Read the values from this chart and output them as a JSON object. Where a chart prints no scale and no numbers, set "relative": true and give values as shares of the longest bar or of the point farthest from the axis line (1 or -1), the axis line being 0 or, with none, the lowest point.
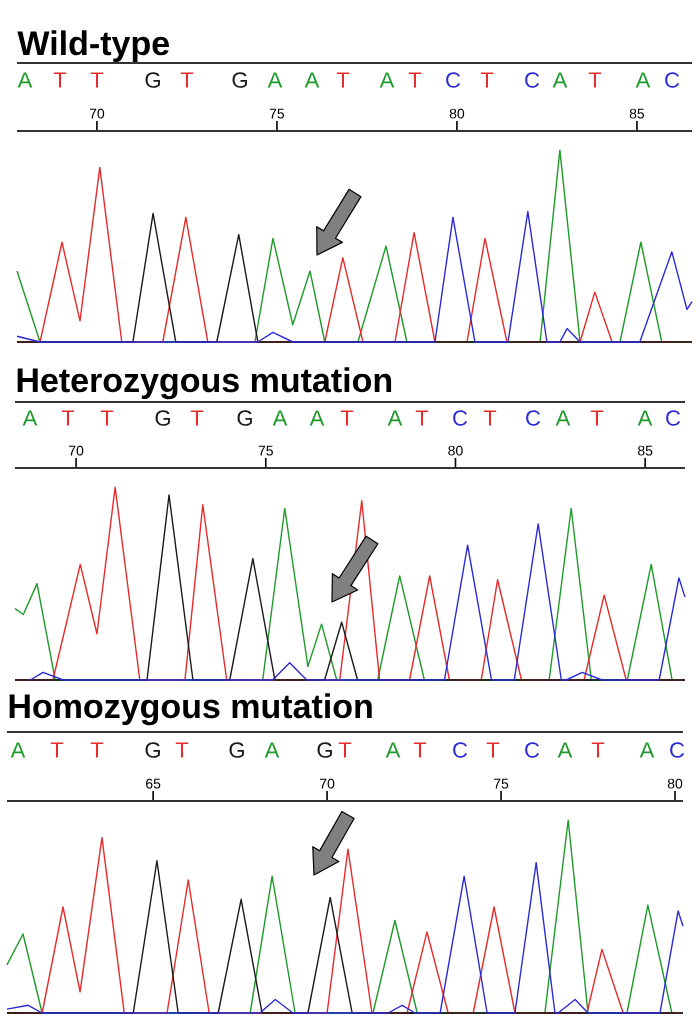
{
  "chart_data": [
    {
      "type": "line",
      "relative": true,
      "title": "Wild-type",
      "xlim": [
        67.78,
        86.53
      ],
      "xticks": [
        70,
        75,
        80,
        85
      ],
      "annotations": [
        "A",
        "T",
        "T",
        "G",
        "T",
        "G",
        "A",
        "A",
        "T",
        "A",
        "T",
        "C",
        "T",
        "C",
        "A",
        "T",
        "A",
        "C"
      ],
      "series": [
        {
          "color": "#1f9a2a",
          "x": [
            67.78,
            68.42,
            74.39,
            74.89,
            75.44,
            75.92,
            76.33,
            77.25,
            78.03,
            78.61,
            82.31,
            82.86,
            83.42,
            84.53,
            85.11,
            85.69,
            86.53
          ],
          "values": [
            0.37,
            0,
            0,
            0.54,
            0.09,
            0.37,
            0,
            0,
            0.5,
            0,
            0,
            1.0,
            0,
            0,
            0.52,
            0,
            0
          ]
        },
        {
          "color": "#e52b2b",
          "x": [
            67.78,
            68.42,
            69.03,
            69.53,
            70.08,
            70.69,
            71.83,
            72.47,
            73.08,
            76.33,
            76.83,
            77.39,
            78.28,
            78.81,
            79.39,
            80.28,
            80.78,
            81.39,
            83.42,
            83.83,
            84.31,
            86.53
          ],
          "values": [
            0,
            0,
            0.52,
            0.11,
            0.91,
            0,
            0,
            0.65,
            0,
            0,
            0.44,
            0,
            0,
            0.57,
            0,
            0,
            0.54,
            0,
            0,
            0.26,
            0,
            0
          ]
        },
        {
          "color": "#1a1a1a",
          "x": [
            67.78,
            71.0,
            71.56,
            72.19,
            73.33,
            73.94,
            74.47,
            86.53
          ],
          "values": [
            0,
            0,
            0.67,
            0,
            0,
            0.56,
            0,
            0
          ]
        },
        {
          "color": "#2b2bd6",
          "x": [
            67.78,
            68.42,
            74.47,
            74.89,
            75.44,
            79.39,
            79.89,
            80.5,
            81.42,
            81.97,
            82.5,
            82.86,
            83.06,
            83.42,
            85.08,
            85.97,
            86.39,
            86.53
          ],
          "values": [
            0.03,
            0,
            0,
            0.05,
            0,
            0,
            0.65,
            0,
            0,
            0.68,
            0,
            0,
            0.07,
            0,
            0,
            0.47,
            0.17,
            0.21
          ]
        }
      ]
    },
    {
      "type": "line",
      "relative": true,
      "title": "Heterozygous mutation",
      "xlim": [
        68.39,
        86.05
      ],
      "xticks": [
        70,
        75,
        80,
        85
      ],
      "annotations": [
        "A",
        "T",
        "T",
        "G",
        "T",
        "G",
        "A",
        "A",
        "T",
        "A",
        "T",
        "C",
        "T",
        "C",
        "A",
        "T",
        "A",
        "C"
      ],
      "series": [
        {
          "color": "#1f9a2a",
          "x": [
            68.39,
            68.61,
            68.97,
            69.45,
            74.92,
            75.5,
            76.11,
            76.47,
            76.87,
            77.95,
            78.53,
            79.18,
            82.47,
            83.05,
            83.58,
            84.53,
            85.16,
            85.71,
            86.05
          ],
          "values": [
            0.37,
            0.34,
            0.5,
            0,
            0,
            0.89,
            0.07,
            0.29,
            0,
            0,
            0.54,
            0,
            0,
            0.89,
            0,
            0,
            0.6,
            0,
            0
          ]
        },
        {
          "color": "#e52b2b",
          "x": [
            68.39,
            69.39,
            70.11,
            70.55,
            71.03,
            71.68,
            72.87,
            73.34,
            73.97,
            76.95,
            77.53,
            78.0,
            78.79,
            79.32,
            79.84,
            80.68,
            81.11,
            81.74,
            83.39,
            83.92,
            84.5,
            86.05
          ],
          "values": [
            0,
            0,
            0.6,
            0.24,
            1.0,
            0,
            0,
            0.91,
            0,
            0,
            0.93,
            0,
            0,
            0.54,
            0,
            0,
            0.52,
            0,
            0,
            0.44,
            0,
            0
          ]
        },
        {
          "color": "#1a1a1a",
          "x": [
            68.39,
            71.87,
            72.45,
            73.08,
            74.05,
            74.66,
            75.24,
            76.55,
            77.0,
            77.42,
            86.05
          ],
          "values": [
            0,
            0,
            0.96,
            0,
            0,
            0.63,
            0,
            0,
            0.3,
            0,
            0
          ]
        },
        {
          "color": "#2b2bd6",
          "x": [
            68.79,
            69.13,
            69.66,
            75.18,
            75.63,
            76.08,
            79.71,
            80.32,
            80.95,
            81.55,
            82.18,
            82.79,
            82.92,
            83.34,
            83.87,
            85.37,
            85.89,
            86.05
          ],
          "values": [
            0,
            0.04,
            0,
            0,
            0.09,
            0,
            0,
            0.7,
            0,
            0,
            0.81,
            0,
            0,
            0.04,
            0,
            0,
            0.53,
            0.43
          ]
        }
      ]
    },
    {
      "type": "line",
      "relative": true,
      "title": "Homozygous mutation",
      "xlim": [
        60.8,
        80.23
      ],
      "xticks": [
        65,
        70,
        75,
        80
      ],
      "annotations": [
        "A",
        "T",
        "T",
        "G",
        "T",
        "G",
        "A",
        "G",
        "T",
        "A",
        "T",
        "C",
        "T",
        "C",
        "A",
        "T",
        "A",
        "C"
      ],
      "series": [
        {
          "color": "#1f9a2a",
          "x": [
            60.8,
            61.26,
            61.81,
            67.79,
            68.42,
            69.08,
            71.32,
            71.95,
            72.59,
            76.26,
            76.93,
            77.5,
            78.62,
            79.22,
            79.91,
            80.23
          ],
          "values": [
            0.25,
            0.41,
            0,
            0,
            0.71,
            0,
            0,
            0.48,
            0,
            0,
            1.0,
            0,
            0,
            0.56,
            0,
            0
          ]
        },
        {
          "color": "#e52b2b",
          "x": [
            60.8,
            61.81,
            62.41,
            62.9,
            63.53,
            64.17,
            65.4,
            66.01,
            66.61,
            70.0,
            70.6,
            71.29,
            72.3,
            72.87,
            73.48,
            74.2,
            74.8,
            75.4,
            77.47,
            77.9,
            78.51,
            80.23
          ],
          "values": [
            0,
            0,
            0.55,
            0.11,
            0.91,
            0,
            0,
            0.69,
            0,
            0,
            0.85,
            0,
            0,
            0.42,
            0,
            0,
            0.55,
            0,
            0,
            0.33,
            0,
            0
          ]
        },
        {
          "color": "#1a1a1a",
          "x": [
            60.8,
            64.43,
            65.11,
            65.72,
            66.87,
            67.53,
            68.13,
            69.45,
            70.09,
            70.72,
            80.23
          ],
          "values": [
            0,
            0,
            0.79,
            0,
            0,
            0.59,
            0,
            0,
            0.6,
            0,
            0
          ]
        },
        {
          "color": "#2b2bd6",
          "x": [
            60.8,
            61.41,
            61.81,
            68.07,
            68.51,
            69.02,
            71.75,
            72.16,
            72.53,
            73.25,
            73.94,
            74.6,
            75.4,
            76.01,
            76.55,
            76.64,
            77.13,
            77.5,
            79.57,
            80.09,
            80.23
          ],
          "values": [
            0.02,
            0.04,
            0,
            0,
            0.07,
            0,
            0,
            0.04,
            0,
            0,
            0.71,
            0,
            0,
            0.78,
            0,
            0,
            0.07,
            0,
            0,
            0.53,
            0.45
          ]
        }
      ]
    }
  ]
}
